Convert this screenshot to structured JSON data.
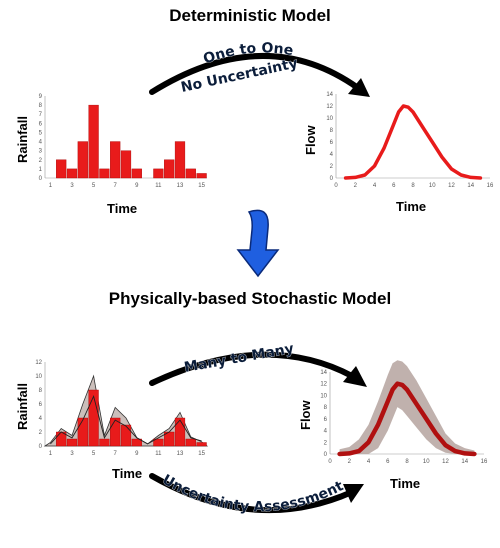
{
  "titles": {
    "top": "Deterministic Model",
    "middle": "Physically-based Stochastic Model"
  },
  "arrows": {
    "top_upper": "One to One",
    "top_lower": "No Uncertainty",
    "bottom_upper": "Many to Many",
    "bottom_lower": "Uncertainty Assessment"
  },
  "colors": {
    "bar_fill": "#e81b1b",
    "flow_line": "#e81b1b",
    "stochastic_line": "#b01010",
    "band_fill": "#b9a9a4",
    "transition_arrow": "#1f5fe0"
  },
  "chart_data": [
    {
      "type": "bar",
      "ylabel": "Rainfall",
      "xlabel": "Time",
      "categories": [
        1,
        2,
        3,
        4,
        5,
        6,
        7,
        8,
        9,
        10,
        11,
        12,
        13,
        14,
        15
      ],
      "values": [
        0,
        2,
        1,
        4,
        8,
        1,
        4,
        3,
        1,
        0,
        1,
        2,
        4,
        1,
        0.5
      ],
      "ylim": [
        0,
        9
      ],
      "x_tick_labels": [
        "1",
        "3",
        "5",
        "7",
        "9",
        "11",
        "13",
        "15"
      ],
      "y_tick_labels": [
        "0",
        "1",
        "2",
        "3",
        "4",
        "5",
        "6",
        "7",
        "8",
        "9"
      ]
    },
    {
      "type": "line",
      "ylabel": "Flow",
      "xlabel": "Time",
      "x": [
        1,
        2,
        3,
        4,
        5,
        6,
        6.5,
        7,
        7.5,
        8,
        9,
        10,
        11,
        12,
        13,
        14,
        15
      ],
      "y": [
        0,
        0.1,
        0.5,
        2,
        5,
        9,
        11,
        12,
        11.8,
        11,
        8.5,
        6,
        3.5,
        1.5,
        0.5,
        0.1,
        0
      ],
      "xlim": [
        0,
        16
      ],
      "ylim": [
        0,
        14
      ],
      "x_tick_labels": [
        "0",
        "2",
        "4",
        "6",
        "8",
        "10",
        "12",
        "14",
        "16"
      ],
      "y_tick_labels": [
        "0",
        "2",
        "4",
        "6",
        "8",
        "10",
        "12",
        "14"
      ]
    },
    {
      "type": "bar",
      "ylabel": "Rainfall",
      "xlabel": "Time",
      "categories": [
        1,
        2,
        3,
        4,
        5,
        6,
        7,
        8,
        9,
        10,
        11,
        12,
        13,
        14,
        15
      ],
      "values": [
        0,
        2,
        1,
        4,
        8,
        1,
        4,
        3,
        1,
        0,
        1,
        2,
        4,
        1,
        0.5
      ],
      "uncertainty_upper": [
        0.5,
        2.5,
        1.5,
        6,
        10,
        1.5,
        5.5,
        4,
        1.2,
        0.3,
        1.5,
        2.5,
        4.8,
        1.3,
        0.6
      ],
      "ylim": [
        0,
        12
      ],
      "x_tick_labels": [
        "1",
        "3",
        "5",
        "7",
        "9",
        "11",
        "13",
        "15"
      ],
      "y_tick_labels": [
        "0",
        "2",
        "4",
        "6",
        "8",
        "10",
        "12"
      ]
    },
    {
      "type": "area",
      "ylabel": "Flow",
      "xlabel": "Time",
      "x": [
        1,
        2,
        3,
        4,
        5,
        6,
        6.5,
        7,
        7.5,
        8,
        9,
        10,
        11,
        12,
        13,
        14,
        15
      ],
      "y": [
        0,
        0.1,
        0.5,
        2,
        5,
        9,
        11,
        12,
        11.8,
        11,
        8.5,
        6,
        3.5,
        1.5,
        0.5,
        0.1,
        0
      ],
      "upper": [
        0.8,
        1.2,
        2.5,
        5,
        9,
        13.5,
        15.5,
        16,
        15.8,
        15,
        12.5,
        9.5,
        6.5,
        3.5,
        1.8,
        1,
        0.6
      ],
      "lower": [
        0,
        0,
        0,
        0,
        1,
        4,
        6,
        8,
        7.5,
        6.5,
        4.5,
        2.5,
        1,
        0.2,
        0,
        0,
        0
      ],
      "xlim": [
        0,
        16
      ],
      "ylim": [
        0,
        14
      ],
      "x_tick_labels": [
        "0",
        "2",
        "4",
        "6",
        "8",
        "10",
        "12",
        "14",
        "16"
      ],
      "y_tick_labels": [
        "0",
        "2",
        "4",
        "6",
        "8",
        "10",
        "12",
        "14"
      ]
    }
  ]
}
